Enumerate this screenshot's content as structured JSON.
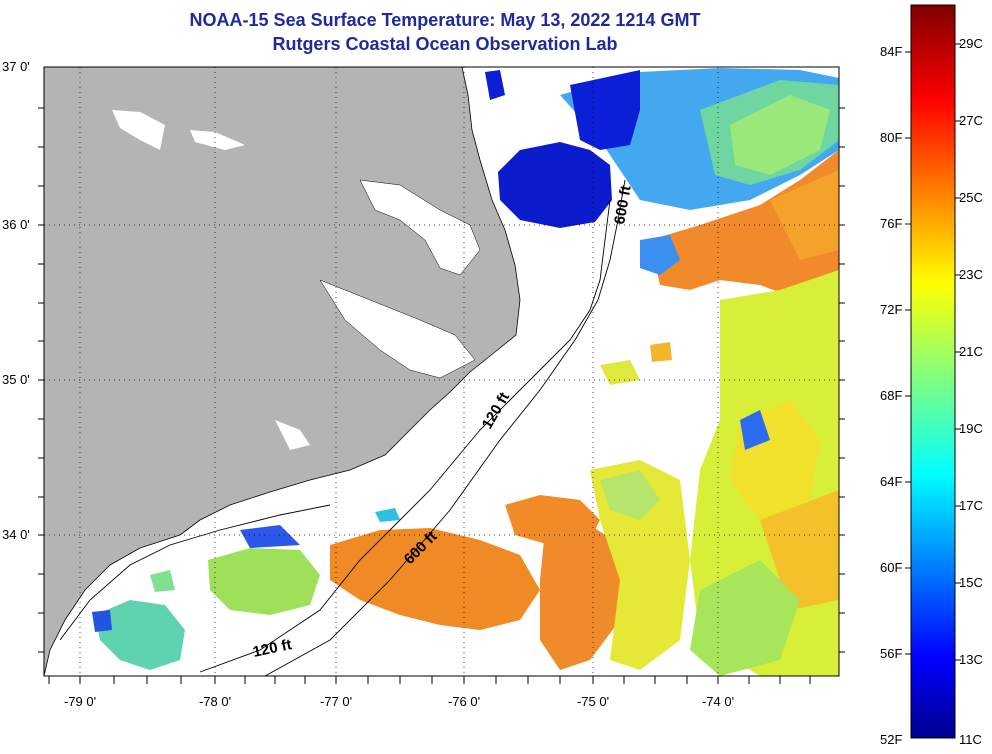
{
  "title": "NOAA-15 Sea Surface Temperature:  May 13, 2022 1214 GMT",
  "subtitle": "Rutgers Coastal Ocean Observation Lab",
  "map": {
    "lat_labels": [
      "37 0'",
      "36 0'",
      "35 0'",
      "34 0'"
    ],
    "lon_labels": [
      "-79 0'",
      "-78 0'",
      "-77 0'",
      "-76 0'",
      "-75 0'",
      "-74 0'"
    ],
    "contours": [
      "600 ft",
      "120 ft",
      "600 ft",
      "120 ft"
    ],
    "land_color": "#b4b4b4"
  },
  "colorbar": {
    "f_labels": [
      "84F",
      "80F",
      "76F",
      "72F",
      "68F",
      "64F",
      "60F",
      "56F",
      "52F"
    ],
    "c_labels": [
      "29C",
      "27C",
      "25C",
      "23C",
      "21C",
      "19C",
      "17C",
      "15C",
      "13C",
      "11C"
    ]
  }
}
